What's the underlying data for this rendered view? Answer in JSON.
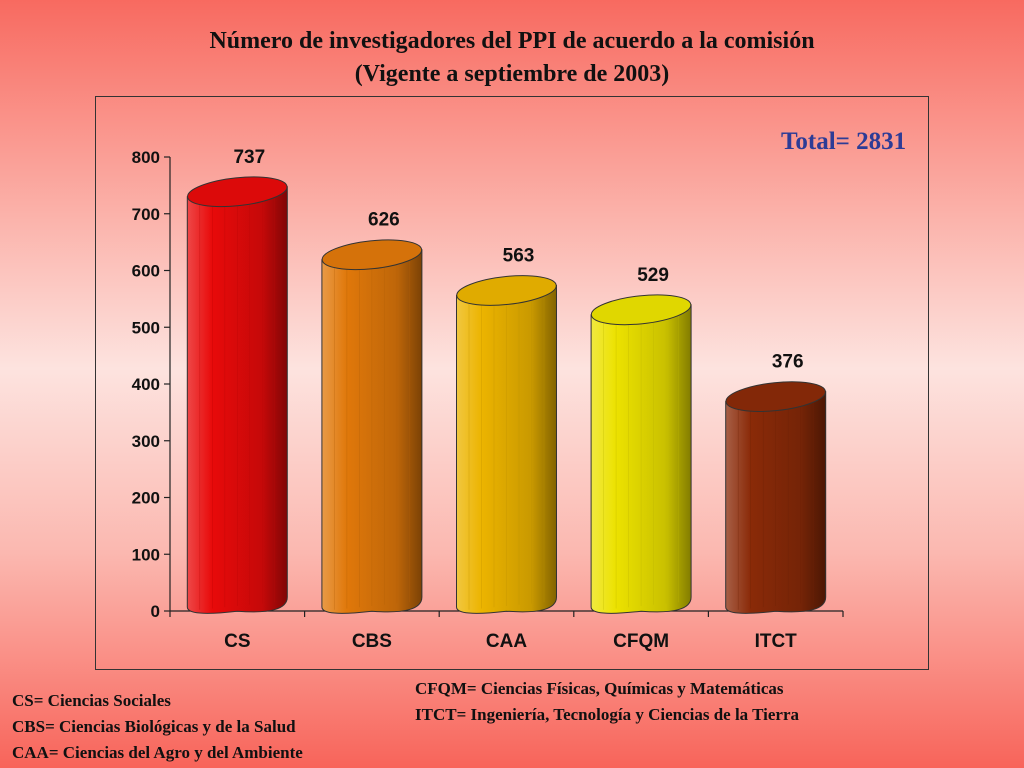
{
  "title_line1": "Número  de  investigadores  del   PPI  de acuerdo a la comisión",
  "title_line2": "(Vigente  a  septiembre de  2003)",
  "total_label": "Total= 2831",
  "legend_left": [
    "CS= Ciencias Sociales",
    "CBS= Ciencias Biológicas y de la Salud",
    "CAA= Ciencias del Agro y del Ambiente"
  ],
  "legend_right": [
    "CFQM= Ciencias Físicas, Químicas y Matemáticas",
    "ITCT= Ingeniería, Tecnología y Ciencias de la Tierra"
  ],
  "chart_data": {
    "type": "bar",
    "title": "Número  de  investigadores  del   PPI  de acuerdo a la comisión",
    "subtitle": "(Vigente  a  septiembre de  2003)",
    "categories": [
      "CS",
      "CBS",
      "CAA",
      "CFQM",
      "ITCT"
    ],
    "values": [
      737,
      626,
      563,
      529,
      376
    ],
    "colors": [
      "#e80a0a",
      "#e0780a",
      "#ecb400",
      "#ece200",
      "#8a2a08"
    ],
    "yticks": [
      0,
      100,
      200,
      300,
      400,
      500,
      600,
      700,
      800
    ],
    "ylim": [
      0,
      800
    ],
    "xlabel": "",
    "ylabel": "",
    "grid": false,
    "data_labels": true
  }
}
